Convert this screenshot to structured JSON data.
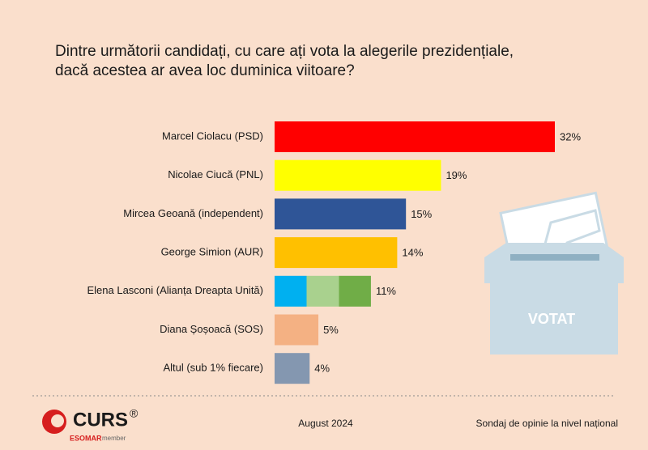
{
  "chart_data": {
    "type": "bar",
    "orientation": "horizontal",
    "title": [
      "Dintre următorii candidați, cu care ați vota la alegerile prezidențiale,",
      "dacă acestea ar avea loc duminica viitoare?"
    ],
    "categories": [
      "Marcel Ciolacu (PSD)",
      "Nicolae Ciucă (PNL)",
      "Mircea Geoană (independent)",
      "George Simion (AUR)",
      "Elena Lasconi (Alianța Dreapta Unită)",
      "Diana Șoșoacă (SOS)",
      "Altul (sub 1% fiecare)"
    ],
    "values": [
      32,
      19,
      15,
      14,
      11,
      5,
      4
    ],
    "value_labels": [
      "32%",
      "19%",
      "15%",
      "14%",
      "11%",
      "5%",
      "4%"
    ],
    "colors": [
      "#ff0000",
      "#ffff00",
      "#2f5597",
      "#ffc000",
      [
        "#00b0f0",
        "#a9d18e",
        "#70ad47"
      ],
      "#f4b183",
      "#8497b0"
    ],
    "image_text": "VOTAT",
    "footer": {
      "date": "August 2024",
      "note": "Sondaj de opinie la nivel național"
    },
    "logo": {
      "name": "CURS",
      "mark": "®",
      "affiliation": "ESOMAR",
      "affiliation_note": "member"
    }
  }
}
